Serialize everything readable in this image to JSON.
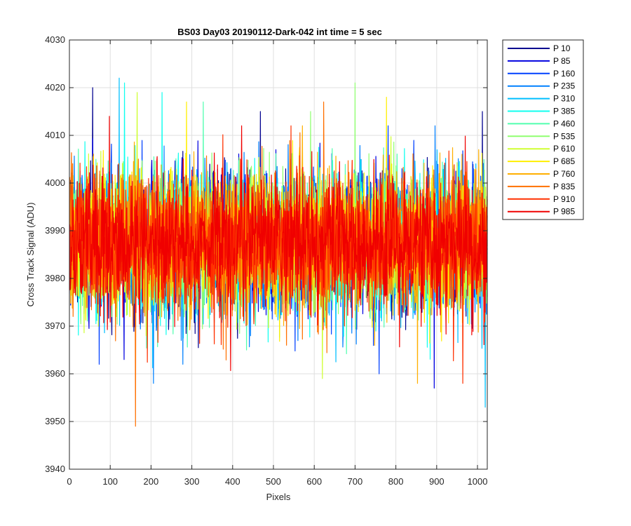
{
  "chart_data": {
    "type": "line",
    "title": "BS03 Day03 20190112-Dark-042 int time = 5 sec",
    "xlabel": "Pixels",
    "ylabel": "Cross Track Signal (ADU)",
    "xlim": [
      0,
      1024
    ],
    "ylim": [
      3940,
      4030
    ],
    "xticks": [
      "0",
      "100",
      "200",
      "300",
      "400",
      "500",
      "600",
      "700",
      "800",
      "900",
      "1000"
    ],
    "yticks": [
      "3940",
      "3950",
      "3960",
      "3970",
      "3980",
      "3990",
      "4000",
      "4010",
      "4020",
      "4030"
    ],
    "grid": true,
    "legend_position": "outside-top-right",
    "noise_model": {
      "samples_per_series": 1024,
      "mean": 3987.5,
      "std_dev": 7,
      "clip": [
        3956,
        4012
      ]
    },
    "series": [
      {
        "name": "P 10",
        "color": "#00008f",
        "spikes": [
          {
            "x": 56,
            "y": 4020
          },
          {
            "x": 467,
            "y": 4015
          },
          {
            "x": 1011,
            "y": 4015
          }
        ]
      },
      {
        "name": "P 85",
        "color": "#0000e0",
        "spikes": [
          {
            "x": 133,
            "y": 3963
          },
          {
            "x": 893,
            "y": 3957
          }
        ]
      },
      {
        "name": "P 160",
        "color": "#0040ff",
        "spikes": [
          {
            "x": 72,
            "y": 3962
          },
          {
            "x": 758,
            "y": 3960
          }
        ]
      },
      {
        "name": "P 235",
        "color": "#0080ff",
        "spikes": [
          {
            "x": 205,
            "y": 3958
          },
          {
            "x": 277,
            "y": 3962
          }
        ]
      },
      {
        "name": "P 310",
        "color": "#00bfff",
        "spikes": [
          {
            "x": 121,
            "y": 4022
          },
          {
            "x": 1018,
            "y": 3953
          }
        ]
      },
      {
        "name": "P 385",
        "color": "#10ffef",
        "spikes": [
          {
            "x": 134,
            "y": 4021
          },
          {
            "x": 226,
            "y": 4019
          }
        ]
      },
      {
        "name": "P 460",
        "color": "#50ffaf",
        "spikes": [
          {
            "x": 327,
            "y": 4017
          },
          {
            "x": 433,
            "y": 3965
          }
        ]
      },
      {
        "name": "P 535",
        "color": "#8fff70",
        "spikes": [
          {
            "x": 699,
            "y": 4021
          },
          {
            "x": 590,
            "y": 4015
          }
        ]
      },
      {
        "name": "P 610",
        "color": "#cfff30",
        "spikes": [
          {
            "x": 165,
            "y": 4019
          },
          {
            "x": 619,
            "y": 3959
          }
        ]
      },
      {
        "name": "P 685",
        "color": "#ffef00",
        "spikes": [
          {
            "x": 286,
            "y": 4017
          },
          {
            "x": 776,
            "y": 4018
          }
        ]
      },
      {
        "name": "P 760",
        "color": "#ffaf00",
        "spikes": [
          {
            "x": 852,
            "y": 3958
          },
          {
            "x": 1002,
            "y": 4007
          }
        ]
      },
      {
        "name": "P 835",
        "color": "#ff7000",
        "spikes": [
          {
            "x": 161,
            "y": 3949
          },
          {
            "x": 622,
            "y": 4017
          }
        ]
      },
      {
        "name": "P 910",
        "color": "#ff3000",
        "spikes": [
          {
            "x": 963,
            "y": 3958
          },
          {
            "x": 542,
            "y": 4012
          }
        ]
      },
      {
        "name": "P 985",
        "color": "#f00000",
        "spikes": [
          {
            "x": 97,
            "y": 4014
          },
          {
            "x": 421,
            "y": 4012
          }
        ]
      }
    ]
  }
}
